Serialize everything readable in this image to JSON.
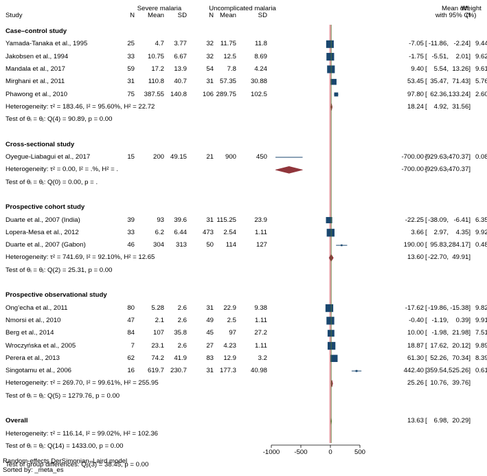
{
  "header": {
    "study": "Study",
    "severe_group": "Severe malaria",
    "uncomplicated_group": "Uncomplicated malaria",
    "col_n": "N",
    "col_mean": "Mean",
    "col_sd": "SD",
    "effect_l1": "Mean diff.",
    "effect_l2": "with 95% CI",
    "weight_l1": "Weight",
    "weight_l2": "(%)"
  },
  "groups": [
    {
      "title": "Case–control study",
      "studies": [
        {
          "name": "Yamada-Tanaka et al., 1995",
          "n1": "25",
          "m1": "4.7",
          "sd1": "3.77",
          "n2": "32",
          "m2": "11.75",
          "sd2": "11.8",
          "es": "-7.05",
          "lo": "-11.86,",
          "hi": "-2.24]",
          "w": "9.44"
        },
        {
          "name": "Jakobsen et al., 1994",
          "n1": "33",
          "m1": "10.75",
          "sd1": "6.67",
          "n2": "32",
          "m2": "12.5",
          "sd2": "8.69",
          "es": "-1.75",
          "lo": "-5.51,",
          "hi": "2.01]",
          "w": "9.62"
        },
        {
          "name": "Mandala et al., 2017",
          "n1": "59",
          "m1": "17.2",
          "sd1": "13.9",
          "n2": "54",
          "m2": "7.8",
          "sd2": "4.24",
          "es": "9.40",
          "lo": "5.54,",
          "hi": "13.26]",
          "w": "9.61"
        },
        {
          "name": "Mirghani et al., 2011",
          "n1": "31",
          "m1": "110.8",
          "sd1": "40.7",
          "n2": "31",
          "m2": "57.35",
          "sd2": "30.88",
          "es": "53.45",
          "lo": "35.47,",
          "hi": "71.43]",
          "w": "5.76"
        },
        {
          "name": "Phawong et al., 2010",
          "n1": "75",
          "m1": "387.55",
          "sd1": "140.8",
          "n2": "106",
          "m2": "289.75",
          "sd2": "102.5",
          "es": "97.80",
          "lo": "62.36,",
          "hi": "133.24]",
          "w": "2.60"
        }
      ],
      "heterogeneity": "Heterogeneity: τ² = 183.46, I² = 95.60%, H² = 22.72",
      "test": "Test of θᵢ = θⱼ: Q(4) = 90.89, p = 0.00",
      "pooled": {
        "es": "18.24",
        "lo": "4.92,",
        "hi": "31.56]"
      }
    },
    {
      "title": "Cross-sectional study",
      "studies": [
        {
          "name": "Oyegue-Liabagui et al., 2017",
          "n1": "15",
          "m1": "200",
          "sd1": "49.15",
          "n2": "21",
          "m2": "900",
          "sd2": "450",
          "es": "-700.00",
          "lo": "-929.63,",
          "hi": "-470.37]",
          "w": "0.08"
        }
      ],
      "heterogeneity": "Heterogeneity: τ² = 0.00, I² = .%, H² = .",
      "test": "Test of θᵢ = θⱼ: Q(0) = 0.00, p = .",
      "pooled": {
        "es": "-700.00",
        "lo": "-929.63,",
        "hi": "-470.37]"
      }
    },
    {
      "title": "Prospective cohort study",
      "studies": [
        {
          "name": "Duarte et al., 2007 (India)",
          "n1": "39",
          "m1": "93",
          "sd1": "39.6",
          "n2": "31",
          "m2": "115.25",
          "sd2": "23.9",
          "es": "-22.25",
          "lo": "-38.09,",
          "hi": "-6.41]",
          "w": "6.35"
        },
        {
          "name": "Lopera-Mesa et al., 2012",
          "n1": "33",
          "m1": "6.2",
          "sd1": "6.44",
          "n2": "473",
          "m2": "2.54",
          "sd2": "1.11",
          "es": "3.66",
          "lo": "2.97,",
          "hi": "4.35]",
          "w": "9.92"
        },
        {
          "name": "Duarte et al., 2007 (Gabon)",
          "n1": "46",
          "m1": "304",
          "sd1": "313",
          "n2": "50",
          "m2": "114",
          "sd2": "127",
          "es": "190.00",
          "lo": "95.83,",
          "hi": "284.17]",
          "w": "0.48"
        }
      ],
      "heterogeneity": "Heterogeneity: τ² = 741.69, I² = 92.10%, H² = 12.65",
      "test": "Test of θᵢ = θⱼ: Q(2) = 25.31, p = 0.00",
      "pooled": {
        "es": "13.60",
        "lo": "-22.70,",
        "hi": "49.91]"
      }
    },
    {
      "title": "Prospective observational study",
      "studies": [
        {
          "name": "Ong’echa et al., 2011",
          "n1": "80",
          "m1": "5.28",
          "sd1": "2.6",
          "n2": "31",
          "m2": "22.9",
          "sd2": "9.38",
          "es": "-17.62",
          "lo": "-19.86,",
          "hi": "-15.38]",
          "w": "9.82"
        },
        {
          "name": "Nmorsi et al., 2010",
          "n1": "47",
          "m1": "2.1",
          "sd1": "2.6",
          "n2": "49",
          "m2": "2.5",
          "sd2": "1.11",
          "es": "-0.40",
          "lo": "-1.19,",
          "hi": "0.39]",
          "w": "9.91"
        },
        {
          "name": "Berg et al., 2014",
          "n1": "84",
          "m1": "107",
          "sd1": "35.8",
          "n2": "45",
          "m2": "97",
          "sd2": "27.2",
          "es": "10.00",
          "lo": "-1.98,",
          "hi": "21.98]",
          "w": "7.51"
        },
        {
          "name": "Wroczyńska et al., 2005",
          "n1": "7",
          "m1": "23.1",
          "sd1": "2.6",
          "n2": "27",
          "m2": "4.23",
          "sd2": "1.11",
          "es": "18.87",
          "lo": "17.62,",
          "hi": "20.12]",
          "w": "9.89"
        },
        {
          "name": "Perera et al., 2013",
          "n1": "62",
          "m1": "74.2",
          "sd1": "41.9",
          "n2": "83",
          "m2": "12.9",
          "sd2": "3.2",
          "es": "61.30",
          "lo": "52.26,",
          "hi": "70.34]",
          "w": "8.39"
        },
        {
          "name": "Singotamu et al., 2006",
          "n1": "16",
          "m1": "619.7",
          "sd1": "230.7",
          "n2": "31",
          "m2": "177.3",
          "sd2": "40.98",
          "es": "442.40",
          "lo": "359.54,",
          "hi": "525.26]",
          "w": "0.61"
        }
      ],
      "heterogeneity": "Heterogeneity: τ² = 269.70, I² = 99.61%, H² = 255.95",
      "test": "Test of θᵢ = θⱼ: Q(5) = 1279.76, p = 0.00",
      "pooled": {
        "es": "25.26",
        "lo": "10.76,",
        "hi": "39.76]"
      }
    }
  ],
  "overall": {
    "title": "Overall",
    "heterogeneity": "Heterogeneity: τ² = 116.14, I² = 99.02%, H² = 102.36",
    "test": "Test of θᵢ = θⱼ: Q(14) = 1433.00, p = 0.00",
    "group_test": "Test of group differences: Qᵦ(3) = 38.45, p = 0.00",
    "pooled": {
      "es": "13.63",
      "lo": "6.98,",
      "hi": "20.29]"
    }
  },
  "footnotes": {
    "model": "Random-effects DerSimonian–Laird model",
    "sort": "Sorted by: _meta_es"
  },
  "colors": {
    "marker": "#1a476f",
    "diamond": "#90353b",
    "overall_diamond": "#55752f",
    "zero_line": "#e8a0a8",
    "overall_line": "#55752f"
  },
  "chart_data": {
    "type": "forest",
    "xlabel": "",
    "xlim": [
      -1000,
      500
    ],
    "xticks": [
      -1000,
      -500,
      0,
      500
    ],
    "reference_line": 0,
    "studies": [
      {
        "name": "Yamada-Tanaka et al., 1995",
        "es": -7.05,
        "lo": -11.86,
        "hi": -2.24,
        "weight": 9.44
      },
      {
        "name": "Jakobsen et al., 1994",
        "es": -1.75,
        "lo": -5.51,
        "hi": 2.01,
        "weight": 9.62
      },
      {
        "name": "Mandala et al., 2017",
        "es": 9.4,
        "lo": 5.54,
        "hi": 13.26,
        "weight": 9.61
      },
      {
        "name": "Mirghani et al., 2011",
        "es": 53.45,
        "lo": 35.47,
        "hi": 71.43,
        "weight": 5.76
      },
      {
        "name": "Phawong et al., 2010",
        "es": 97.8,
        "lo": 62.36,
        "hi": 133.24,
        "weight": 2.6
      },
      {
        "name": "Oyegue-Liabagui et al., 2017",
        "es": -700.0,
        "lo": -929.63,
        "hi": -470.37,
        "weight": 0.08
      },
      {
        "name": "Duarte et al., 2007 (India)",
        "es": -22.25,
        "lo": -38.09,
        "hi": -6.41,
        "weight": 6.35
      },
      {
        "name": "Lopera-Mesa et al., 2012",
        "es": 3.66,
        "lo": 2.97,
        "hi": 4.35,
        "weight": 9.92
      },
      {
        "name": "Duarte et al., 2007 (Gabon)",
        "es": 190.0,
        "lo": 95.83,
        "hi": 284.17,
        "weight": 0.48
      },
      {
        "name": "Ong’echa et al., 2011",
        "es": -17.62,
        "lo": -19.86,
        "hi": -15.38,
        "weight": 9.82
      },
      {
        "name": "Nmorsi et al., 2010",
        "es": -0.4,
        "lo": -1.19,
        "hi": 0.39,
        "weight": 9.91
      },
      {
        "name": "Berg et al., 2014",
        "es": 10.0,
        "lo": -1.98,
        "hi": 21.98,
        "weight": 7.51
      },
      {
        "name": "Wroczyńska et al., 2005",
        "es": 18.87,
        "lo": 17.62,
        "hi": 20.12,
        "weight": 9.89
      },
      {
        "name": "Perera et al., 2013",
        "es": 61.3,
        "lo": 52.26,
        "hi": 70.34,
        "weight": 8.39
      },
      {
        "name": "Singotamu et al., 2006",
        "es": 442.4,
        "lo": 359.54,
        "hi": 525.26,
        "weight": 0.61
      }
    ],
    "subgroups": [
      {
        "name": "Case–control study",
        "es": 18.24,
        "lo": 4.92,
        "hi": 31.56
      },
      {
        "name": "Cross-sectional study",
        "es": -700.0,
        "lo": -929.63,
        "hi": -470.37
      },
      {
        "name": "Prospective cohort study",
        "es": 13.6,
        "lo": -22.7,
        "hi": 49.91
      },
      {
        "name": "Prospective observational study",
        "es": 25.26,
        "lo": 10.76,
        "hi": 39.76
      }
    ],
    "overall": {
      "es": 13.63,
      "lo": 6.98,
      "hi": 20.29
    }
  }
}
